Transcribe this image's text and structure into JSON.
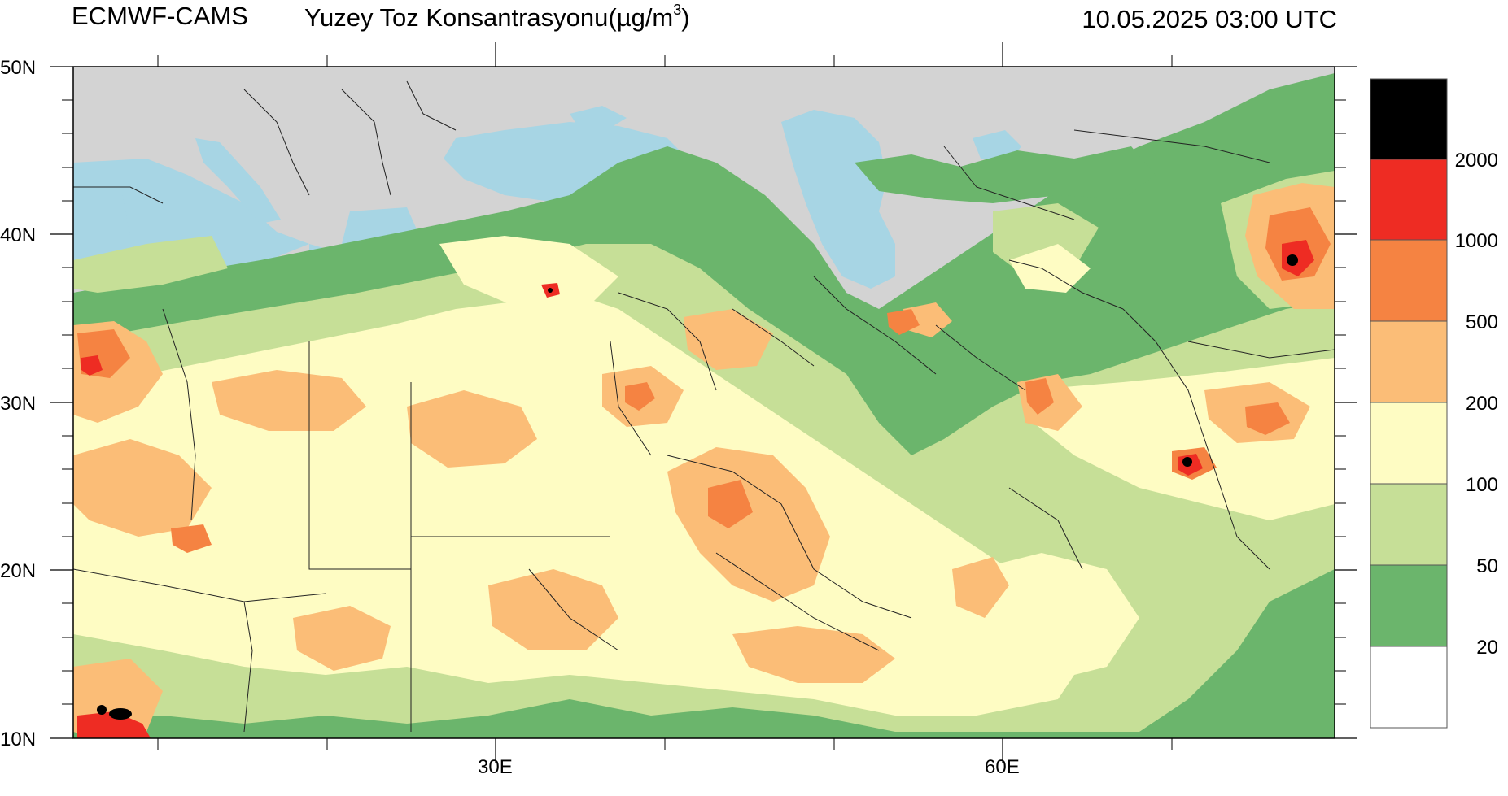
{
  "header": {
    "source": "ECMWF-CAMS",
    "title_text": "Yuzey Toz Konsantrasyonu(µg/m",
    "title_superscript": "3",
    "title_close": ")",
    "datetime": "10.05.2025 03:00 UTC"
  },
  "axes": {
    "lat_labels": [
      "50N",
      "40N",
      "30N",
      "20N",
      "10N"
    ],
    "lon_labels": [
      "30E",
      "60E"
    ]
  },
  "colorbar": {
    "labels": [
      "2000",
      "1000",
      "500",
      "200",
      "100",
      "50",
      "20"
    ],
    "colors": [
      "#000000",
      "#ee2c23",
      "#f58342",
      "#fbbd77",
      "#fefcc3",
      "#c6df97",
      "#6bb56c",
      "#ffffff"
    ]
  },
  "map_colors": {
    "land": "#d3d3d3",
    "water": "#a7d5e4",
    "border": "#222222"
  }
}
